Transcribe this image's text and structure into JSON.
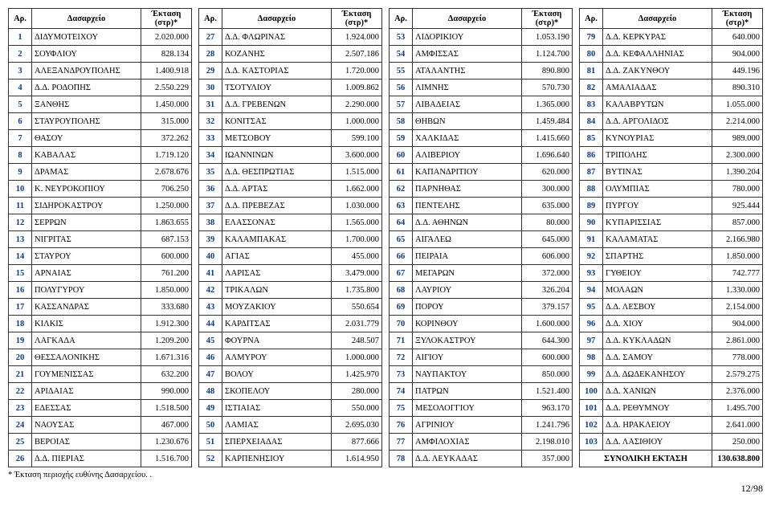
{
  "headers": {
    "num": "Αρ.",
    "name": "Δασαρχείο",
    "area": "Έκταση (στρ)*"
  },
  "columns": [
    [
      {
        "n": "1",
        "name": "ΔΙΔΥΜΟΤΕΙΧΟΥ",
        "a": "2.020.000"
      },
      {
        "n": "2",
        "name": "ΣΟΥΦΛΙΟΥ",
        "a": "828.134"
      },
      {
        "n": "3",
        "name": "ΑΛΕΞΑΝΔΡΟΥΠΟΛΗΣ",
        "a": "1.400.918"
      },
      {
        "n": "4",
        "name": "Δ.Δ. ΡΟΔΟΠΗΣ",
        "a": "2.550.229"
      },
      {
        "n": "5",
        "name": "ΞΑΝΘΗΣ",
        "a": "1.450.000"
      },
      {
        "n": "6",
        "name": "ΣΤΑΥΡΟΥΠΟΛΗΣ",
        "a": "315.000"
      },
      {
        "n": "7",
        "name": "ΘΑΣΟΥ",
        "a": "372.262"
      },
      {
        "n": "8",
        "name": "ΚΑΒΑΛΑΣ",
        "a": "1.719.120"
      },
      {
        "n": "9",
        "name": "ΔΡΑΜΑΣ",
        "a": "2.678.676"
      },
      {
        "n": "10",
        "name": "Κ. ΝΕΥΡΟΚΟΠΙΟΥ",
        "a": "706.250"
      },
      {
        "n": "11",
        "name": "ΣΙΔΗΡΟΚΑΣΤΡΟΥ",
        "a": "1.250.000"
      },
      {
        "n": "12",
        "name": "ΣΕΡΡΩΝ",
        "a": "1.863.655"
      },
      {
        "n": "13",
        "name": "ΝΙΓΡΙΤΑΣ",
        "a": "687.153"
      },
      {
        "n": "14",
        "name": "ΣΤΑΥΡΟΥ",
        "a": "600.000"
      },
      {
        "n": "15",
        "name": "ΑΡΝΑΙΑΣ",
        "a": "761.200"
      },
      {
        "n": "16",
        "name": "ΠΟΛΥΓΥΡΟΥ",
        "a": "1.850.000"
      },
      {
        "n": "17",
        "name": "ΚΑΣΣΑΝΔΡΑΣ",
        "a": "333.680"
      },
      {
        "n": "18",
        "name": "ΚΙΛΚΙΣ",
        "a": "1.912.300"
      },
      {
        "n": "19",
        "name": "ΛΑΓΚΑΔΑ",
        "a": "1.209.200"
      },
      {
        "n": "20",
        "name": "ΘΕΣΣΑΛΟΝΙΚΗΣ",
        "a": "1.671.316"
      },
      {
        "n": "21",
        "name": "ΓΟΥΜΕΝΙΣΣΑΣ",
        "a": "632.200"
      },
      {
        "n": "22",
        "name": "ΑΡΙΔΑΙΑΣ",
        "a": "990.000"
      },
      {
        "n": "23",
        "name": "ΕΔΕΣΣΑΣ",
        "a": "1.518.500"
      },
      {
        "n": "24",
        "name": "ΝΑΟΥΣΑΣ",
        "a": "467.000"
      },
      {
        "n": "25",
        "name": "ΒΕΡΟΙΑΣ",
        "a": "1.230.676"
      },
      {
        "n": "26",
        "name": "Δ.Δ. ΠΙΕΡΙΑΣ",
        "a": "1.516.700"
      }
    ],
    [
      {
        "n": "27",
        "name": "Δ.Δ. ΦΛΩΡΙΝΑΣ",
        "a": "1.924.000"
      },
      {
        "n": "28",
        "name": "ΚΟΖΑΝΗΣ",
        "a": "2.507.186"
      },
      {
        "n": "29",
        "name": "Δ.Δ. ΚΑΣΤΟΡΙΑΣ",
        "a": "1.720.000"
      },
      {
        "n": "30",
        "name": "ΤΣΟΤΥΛΙΟΥ",
        "a": "1.009.862"
      },
      {
        "n": "31",
        "name": "Δ.Δ. ΓΡΕΒΕΝΩΝ",
        "a": "2.290.000"
      },
      {
        "n": "32",
        "name": "ΚΟΝΙΤΣΑΣ",
        "a": "1.000.000"
      },
      {
        "n": "33",
        "name": "ΜΕΤΣΟΒΟΥ",
        "a": "599.100"
      },
      {
        "n": "34",
        "name": "ΙΩΑΝΝΙΝΩΝ",
        "a": "3.600.000"
      },
      {
        "n": "35",
        "name": "Δ.Δ. ΘΕΣΠΡΩΤΙΑΣ",
        "a": "1.515.000"
      },
      {
        "n": "36",
        "name": "Δ.Δ. ΑΡΤΑΣ",
        "a": "1.662.000"
      },
      {
        "n": "37",
        "name": "Δ.Δ. ΠΡΕΒΕΖΑΣ",
        "a": "1.030.000"
      },
      {
        "n": "38",
        "name": "ΕΛΑΣΣΟΝΑΣ",
        "a": "1.565.000"
      },
      {
        "n": "39",
        "name": "ΚΑΛΑΜΠΑΚΑΣ",
        "a": "1.700.000"
      },
      {
        "n": "40",
        "name": "ΑΓΙΑΣ",
        "a": "455.000"
      },
      {
        "n": "41",
        "name": "ΛΑΡΙΣΑΣ",
        "a": "3.479.000"
      },
      {
        "n": "42",
        "name": "ΤΡΙΚΑΛΩΝ",
        "a": "1.735.800"
      },
      {
        "n": "43",
        "name": "ΜΟΥΖΑΚΙΟΥ",
        "a": "550.654"
      },
      {
        "n": "44",
        "name": "ΚΑΡΔΙΤΣΑΣ",
        "a": "2.031.779"
      },
      {
        "n": "45",
        "name": "ΦΟΥΡΝΑ",
        "a": "248.507"
      },
      {
        "n": "46",
        "name": "ΑΛΜΥΡΟΥ",
        "a": "1.000.000"
      },
      {
        "n": "47",
        "name": "ΒΟΛΟΥ",
        "a": "1.425.970"
      },
      {
        "n": "48",
        "name": "ΣΚΟΠΕΛΟΥ",
        "a": "280.000"
      },
      {
        "n": "49",
        "name": "ΙΣΤΙΑΙΑΣ",
        "a": "550.000"
      },
      {
        "n": "50",
        "name": "ΛΑΜΙΑΣ",
        "a": "2.695.030"
      },
      {
        "n": "51",
        "name": "ΣΠΕΡΧΕΙΑΔΑΣ",
        "a": "877.666"
      },
      {
        "n": "52",
        "name": "ΚΑΡΠΕΝΗΣΙΟΥ",
        "a": "1.614.950"
      }
    ],
    [
      {
        "n": "53",
        "name": "ΛΙΔΟΡΙΚΙΟΥ",
        "a": "1.053.190"
      },
      {
        "n": "54",
        "name": "ΑΜΦΙΣΣΑΣ",
        "a": "1.124.700"
      },
      {
        "n": "55",
        "name": "ΑΤΑΛΑΝΤΗΣ",
        "a": "890.800"
      },
      {
        "n": "56",
        "name": "ΛΙΜΝΗΣ",
        "a": "570.730"
      },
      {
        "n": "57",
        "name": "ΛΙΒΑΔΕΙΑΣ",
        "a": "1.365.000"
      },
      {
        "n": "58",
        "name": "ΘΗΒΩΝ",
        "a": "1.459.484"
      },
      {
        "n": "59",
        "name": "ΧΑΛΚΙΔΑΣ",
        "a": "1.415.660"
      },
      {
        "n": "60",
        "name": "ΑΛΙΒΕΡΙΟΥ",
        "a": "1.696.640"
      },
      {
        "n": "61",
        "name": "ΚΑΠΑΝΔΡΙΤΙΟΥ",
        "a": "620.000"
      },
      {
        "n": "62",
        "name": "ΠΑΡΝΗΘΑΣ",
        "a": "300.000"
      },
      {
        "n": "63",
        "name": "ΠΕΝΤΕΛΗΣ",
        "a": "635.000"
      },
      {
        "n": "64",
        "name": "Δ.Δ. ΑΘΗΝΩΝ",
        "a": "80.000"
      },
      {
        "n": "65",
        "name": "ΑΙΓΑΛΕΩ",
        "a": "645.000"
      },
      {
        "n": "66",
        "name": "ΠΕΙΡΑΙΑ",
        "a": "606.000"
      },
      {
        "n": "67",
        "name": "ΜΕΓΑΡΩΝ",
        "a": "372.000"
      },
      {
        "n": "68",
        "name": "ΛΑΥΡΙΟΥ",
        "a": "326.204"
      },
      {
        "n": "69",
        "name": "ΠΟΡΟΥ",
        "a": "379.157"
      },
      {
        "n": "70",
        "name": "ΚΟΡΙΝΘΟΥ",
        "a": "1.600.000"
      },
      {
        "n": "71",
        "name": "ΞΥΛΟΚΑΣΤΡΟΥ",
        "a": "644.300"
      },
      {
        "n": "72",
        "name": "ΑΙΓΙΟΥ",
        "a": "600.000"
      },
      {
        "n": "73",
        "name": "ΝΑΥΠΑΚΤΟΥ",
        "a": "850.000"
      },
      {
        "n": "74",
        "name": "ΠΑΤΡΩΝ",
        "a": "1.521.400"
      },
      {
        "n": "75",
        "name": "ΜΕΣΟΛΟΓΓΙΟΥ",
        "a": "963.170"
      },
      {
        "n": "76",
        "name": "ΑΓΡΙΝΙΟΥ",
        "a": "1.241.796"
      },
      {
        "n": "77",
        "name": "ΑΜΦΙΛΟΧΙΑΣ",
        "a": "2.198.010"
      },
      {
        "n": "78",
        "name": "Δ.Δ. ΛΕΥΚΑΔΑΣ",
        "a": "357.000"
      }
    ],
    [
      {
        "n": "79",
        "name": "Δ.Δ. ΚΕΡΚΥΡΑΣ",
        "a": "640.000"
      },
      {
        "n": "80",
        "name": "Δ.Δ. ΚΕΦΑΛΛΗΝΙΑΣ",
        "a": "904.000"
      },
      {
        "n": "81",
        "name": "Δ.Δ. ΖΑΚΥΝΘΟΥ",
        "a": "449.196"
      },
      {
        "n": "82",
        "name": "ΑΜΑΛΙΑΔΑΣ",
        "a": "890.310"
      },
      {
        "n": "83",
        "name": "ΚΑΛΑΒΡΥΤΩΝ",
        "a": "1.055.000"
      },
      {
        "n": "84",
        "name": "Δ.Δ. ΑΡΓΟΛΙΔΟΣ",
        "a": "2.214.000"
      },
      {
        "n": "85",
        "name": "ΚΥΝΟΥΡΙΑΣ",
        "a": "989.000"
      },
      {
        "n": "86",
        "name": "ΤΡΙΠΟΛΗΣ",
        "a": "2.300.000"
      },
      {
        "n": "87",
        "name": "ΒΥΤΙΝΑΣ",
        "a": "1.390.204"
      },
      {
        "n": "88",
        "name": "ΟΛΥΜΠΙΑΣ",
        "a": "780.000"
      },
      {
        "n": "89",
        "name": "ΠΥΡΓΟΥ",
        "a": "925.444"
      },
      {
        "n": "90",
        "name": "ΚΥΠΑΡΙΣΣΙΑΣ",
        "a": "857.000"
      },
      {
        "n": "91",
        "name": "ΚΑΛΑΜΑΤΑΣ",
        "a": "2.166.980"
      },
      {
        "n": "92",
        "name": "ΣΠΑΡΤΗΣ",
        "a": "1.850.000"
      },
      {
        "n": "93",
        "name": "ΓΥΘΕΙΟΥ",
        "a": "742.777"
      },
      {
        "n": "94",
        "name": "ΜΟΛΑΩΝ",
        "a": "1.330.000"
      },
      {
        "n": "95",
        "name": "Δ.Δ. ΛΕΣΒΟΥ",
        "a": "2.154.000"
      },
      {
        "n": "96",
        "name": "Δ.Δ. ΧΙΟΥ",
        "a": "904.000"
      },
      {
        "n": "97",
        "name": "Δ.Δ. ΚΥΚΛΑΔΩΝ",
        "a": "2.861.000"
      },
      {
        "n": "98",
        "name": "Δ.Δ. ΣΑΜΟΥ",
        "a": "778.000"
      },
      {
        "n": "99",
        "name": "Δ.Δ. ΔΩΔΕΚΑΝΗΣΟΥ",
        "a": "2.579.275"
      },
      {
        "n": "100",
        "name": "Δ.Δ. ΧΑΝΙΩΝ",
        "a": "2.376.000"
      },
      {
        "n": "101",
        "name": "Δ.Δ. ΡΕΘΥΜΝΟΥ",
        "a": "1.495.700"
      },
      {
        "n": "102",
        "name": "Δ.Δ. ΗΡΑΚΛΕΙΟΥ",
        "a": "2.641.000"
      },
      {
        "n": "103",
        "name": "Δ.Δ. ΛΑΣΙΘΙΟΥ",
        "a": "250.000"
      }
    ]
  ],
  "total": {
    "label": "ΣΥΝΟΛΙΚΗ ΕΚΤΑΣΗ",
    "value": "130.638.800"
  },
  "footnote": "* Έκταση περιοχής ευθύνης Δασαρχείου. .",
  "pagenum": "12/98"
}
